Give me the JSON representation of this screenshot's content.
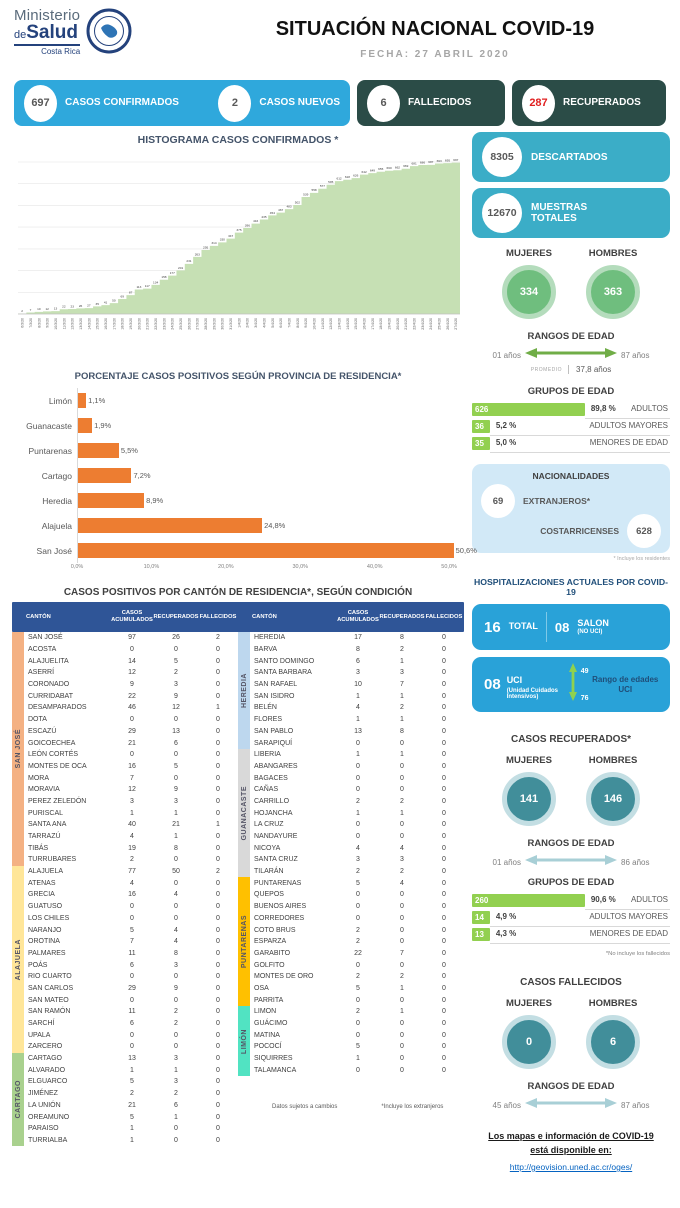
{
  "header": {
    "ministry_line1": "Ministerio",
    "ministry_de": "de",
    "ministry_line2": "Salud",
    "ministry_line3": "Costa Rica",
    "title": "SITUACIÓN NACIONAL COVID-19",
    "date_label": "FECHA: 27 ABRIL 2020"
  },
  "stats": {
    "confirmed": {
      "value": "697",
      "label": "CASOS CONFIRMADOS"
    },
    "new_cases": {
      "value": "2",
      "label": "CASOS NUEVOS"
    },
    "deaths": {
      "value": "6",
      "label": "FALLECIDOS"
    },
    "recovered": {
      "value": "287",
      "label": "RECUPERADOS"
    }
  },
  "colors": {
    "light_blue": "#2fa8dc",
    "dark_teal": "#2b4c47",
    "teal": "#3badc7",
    "hospital_blue": "#29a2d8",
    "green_bar": "#92d050",
    "orange_bar": "#ed7d31",
    "hist_green": "#c6e0b4",
    "table_header": "#2f5597",
    "recovered_number_red": "#e01f1f"
  },
  "chart_data": [
    {
      "type": "area",
      "title": "HISTOGRAMA CASOS CONFIRMADOS *",
      "x": [
        "6/3/20",
        "7/3/20",
        "8/3/20",
        "9/3/20",
        "10/3/20",
        "11/3/20",
        "12/3/20",
        "13/3/20",
        "14/3/20",
        "15/3/20",
        "16/3/20",
        "17/3/20",
        "18/3/20",
        "19/3/20",
        "20/3/20",
        "21/3/20",
        "22/3/20",
        "23/3/20",
        "24/3/20",
        "25/3/20",
        "26/3/20",
        "27/3/20",
        "28/3/20",
        "29/3/20",
        "30/3/20",
        "31/3/20",
        "1/4/20",
        "2/4/20",
        "3/4/20",
        "4/4/20",
        "5/4/20",
        "6/4/20",
        "7/4/20",
        "8/4/20",
        "9/4/20",
        "10/4/20",
        "11/4/20",
        "12/4/20",
        "13/4/20",
        "14/4/20",
        "15/4/20",
        "16/4/20",
        "17/4/20",
        "18/4/20",
        "19/4/20",
        "20/4/20",
        "21/4/20",
        "22/4/20",
        "23/4/20",
        "24/4/20",
        "25/4/20",
        "26/4/20",
        "27/4/20"
      ],
      "values": [
        2,
        7,
        10,
        12,
        13,
        22,
        23,
        26,
        27,
        35,
        41,
        50,
        69,
        87,
        113,
        117,
        134,
        158,
        177,
        201,
        231,
        263,
        295,
        314,
        330,
        347,
        375,
        396,
        416,
        435,
        454,
        467,
        483,
        502,
        539,
        558,
        577,
        595,
        612,
        618,
        626,
        642,
        649,
        655,
        660,
        662,
        669,
        681,
        686,
        687,
        693,
        695,
        697
      ],
      "ylim": [
        0,
        700
      ],
      "grid": "horizontal",
      "color": "#c6e0b4"
    },
    {
      "type": "bar",
      "orientation": "horizontal",
      "title": "PORCENTAJE CASOS POSITIVOS SEGÚN PROVINCIA DE RESIDENCIA*",
      "categories": [
        "Limón",
        "Guanacaste",
        "Puntarenas",
        "Cartago",
        "Heredia",
        "Alajuela",
        "San José"
      ],
      "values": [
        1.1,
        1.9,
        5.5,
        7.2,
        8.9,
        24.8,
        50.6
      ],
      "labels": [
        "1,1%",
        "1,9%",
        "5,5%",
        "7,2%",
        "8,9%",
        "24,8%",
        "50,6%"
      ],
      "xticks": [
        "0,0%",
        "10,0%",
        "20,0%",
        "30,0%",
        "40,0%",
        "50,0%"
      ],
      "xlim": [
        0,
        52
      ],
      "color": "#ed7d31"
    }
  ],
  "right_col": {
    "discarded": {
      "value": "8305",
      "label": "DESCARTADOS"
    },
    "samples": {
      "value": "12670",
      "label1": "MUESTRAS",
      "label2": "TOTALES"
    },
    "confirmed_gender": {
      "women_label": "MUJERES",
      "men_label": "HOMBRES",
      "women": "334",
      "men": "363"
    },
    "confirmed_age_range": {
      "title": "RANGOS DE EDAD",
      "min": "01 años",
      "max": "87 años",
      "avg_label": "PROMEDIO",
      "avg": "37,8 años"
    },
    "confirmed_age_groups": {
      "title": "GRUPOS DE EDAD",
      "rows": [
        {
          "value": "626",
          "pct": "89,8 %",
          "label": "ADULTOS"
        },
        {
          "value": "36",
          "pct": "5,2 %",
          "label": "ADULTOS MAYORES"
        },
        {
          "value": "35",
          "pct": "5,0 %",
          "label": "MENORES DE EDAD"
        }
      ]
    },
    "nationalities": {
      "title": "NACIONALIDADES",
      "foreign_value": "69",
      "foreign_label": "EXTRANJEROS*",
      "local_label": "COSTARRICENSES",
      "local_value": "628",
      "footnote": "* Incluye los residentes"
    },
    "hospitalizations": {
      "title": "HOSPITALIZACIONES ACTUALES POR COVID-19",
      "total_value": "16",
      "total_label": "TOTAL",
      "ward_value": "08",
      "ward_label": "SALON",
      "ward_sub": "(NO UCI)",
      "icu_value": "08",
      "icu_label": "UCI",
      "icu_sub": "(Unidad Cuidados Intensivos)",
      "icu_age_min": "49",
      "icu_age_max": "76",
      "icu_range_label": "Rango de edades UCI"
    },
    "recovered": {
      "title": "CASOS RECUPERADOS*",
      "women_label": "MUJERES",
      "men_label": "HOMBRES",
      "women": "141",
      "men": "146",
      "range_title": "RANGOS DE EDAD",
      "range_min": "01 años",
      "range_max": "86 años",
      "groups_title": "GRUPOS DE EDAD",
      "groups": [
        {
          "value": "260",
          "pct": "90,6 %",
          "label": "ADULTOS"
        },
        {
          "value": "14",
          "pct": "4,9 %",
          "label": "ADULTOS MAYORES"
        },
        {
          "value": "13",
          "pct": "4,3 %",
          "label": "MENORES DE EDAD"
        }
      ],
      "footnote": "*No incluye los fallecidos"
    },
    "deaths": {
      "title": "CASOS FALLECIDOS",
      "women_label": "MUJERES",
      "men_label": "HOMBRES",
      "women": "0",
      "men": "6",
      "range_title": "RANGOS DE EDAD",
      "range_min": "45 años",
      "range_max": "87 años"
    },
    "footer": {
      "line1": "Los mapas e información de COVID-19",
      "line2": "está disponible en:",
      "url": "http://geovision.uned.ac.cr/oges/"
    }
  },
  "cantons_table": {
    "title": "CASOS POSITIVOS POR CANTÓN DE RESIDENCIA*, SEGÚN CONDICIÓN",
    "headers": [
      "CANTÓN",
      "CASOS ACUMULADOS",
      "RECUPERADOS",
      "FALLECIDOS"
    ],
    "left_groups": [
      {
        "province": "SAN JOSÉ",
        "color": "#f4b183",
        "rows": [
          [
            "SAN JOSÉ",
            97,
            26,
            2
          ],
          [
            "ACOSTA",
            0,
            0,
            0
          ],
          [
            "ALAJUELITA",
            14,
            5,
            0
          ],
          [
            "ASERRÍ",
            12,
            2,
            0
          ],
          [
            "CORONADO",
            9,
            3,
            0
          ],
          [
            "CURRIDABAT",
            22,
            9,
            0
          ],
          [
            "DESAMPARADOS",
            46,
            12,
            1
          ],
          [
            "DOTA",
            0,
            0,
            0
          ],
          [
            "ESCAZÚ",
            29,
            13,
            0
          ],
          [
            "GOICOECHEA",
            21,
            6,
            0
          ],
          [
            "LEÓN CORTÉS",
            0,
            0,
            0
          ],
          [
            "MONTES DE OCA",
            16,
            5,
            0
          ],
          [
            "MORA",
            7,
            0,
            0
          ],
          [
            "MORAVIA",
            12,
            9,
            0
          ],
          [
            "PEREZ ZELEDÓN",
            3,
            3,
            0
          ],
          [
            "PURISCAL",
            1,
            1,
            0
          ],
          [
            "SANTA ANA",
            40,
            21,
            1
          ],
          [
            "TARRAZÚ",
            4,
            1,
            0
          ],
          [
            "TIBÁS",
            19,
            8,
            0
          ],
          [
            "TURRUBARES",
            2,
            0,
            0
          ]
        ]
      },
      {
        "province": "ALAJUELA",
        "color": "#ffe699",
        "rows": [
          [
            "ALAJUELA",
            77,
            50,
            2
          ],
          [
            "ATENAS",
            4,
            0,
            0
          ],
          [
            "GRECIA",
            16,
            4,
            0
          ],
          [
            "GUATUSO",
            0,
            0,
            0
          ],
          [
            "LOS CHILES",
            0,
            0,
            0
          ],
          [
            "NARANJO",
            5,
            4,
            0
          ],
          [
            "OROTINA",
            7,
            4,
            0
          ],
          [
            "PALMARES",
            11,
            8,
            0
          ],
          [
            "POÁS",
            6,
            3,
            0
          ],
          [
            "RIO CUARTO",
            0,
            0,
            0
          ],
          [
            "SAN CARLOS",
            29,
            9,
            0
          ],
          [
            "SAN MATEO",
            0,
            0,
            0
          ],
          [
            "SAN RAMÓN",
            11,
            2,
            0
          ],
          [
            "SARCHÍ",
            6,
            2,
            0
          ],
          [
            "UPALA",
            0,
            0,
            0
          ],
          [
            "ZARCERO",
            0,
            0,
            0
          ]
        ]
      },
      {
        "province": "CARTAGO",
        "color": "#a9d18e",
        "rows": [
          [
            "CARTAGO",
            13,
            3,
            0
          ],
          [
            "ALVARADO",
            1,
            1,
            0
          ],
          [
            "ELGUARCO",
            5,
            3,
            0
          ],
          [
            "JIMÉNEZ",
            2,
            2,
            0
          ],
          [
            "LA UNIÓN",
            21,
            6,
            0
          ],
          [
            "OREAMUNO",
            5,
            1,
            0
          ],
          [
            "PARAISO",
            1,
            0,
            0
          ],
          [
            "TURRIALBA",
            1,
            0,
            0
          ]
        ]
      }
    ],
    "right_groups": [
      {
        "province": "HEREDIA",
        "color": "#bdd7ee",
        "rows": [
          [
            "HEREDIA",
            17,
            8,
            0
          ],
          [
            "BARVA",
            8,
            2,
            0
          ],
          [
            "SANTO DOMINGO",
            6,
            1,
            0
          ],
          [
            "SANTA BARBARA",
            3,
            3,
            0
          ],
          [
            "SAN RAFAEL",
            10,
            7,
            0
          ],
          [
            "SAN ISIDRO",
            1,
            1,
            0
          ],
          [
            "BELÉN",
            4,
            2,
            0
          ],
          [
            "FLORES",
            1,
            1,
            0
          ],
          [
            "SAN PABLO",
            13,
            8,
            0
          ],
          [
            "SARAPIQUÍ",
            0,
            0,
            0
          ]
        ]
      },
      {
        "province": "GUANACASTE",
        "color": "#d9d9d9",
        "rows": [
          [
            "LIBERIA",
            1,
            1,
            0
          ],
          [
            "ABANGARES",
            0,
            0,
            0
          ],
          [
            "BAGACES",
            0,
            0,
            0
          ],
          [
            "CAÑAS",
            0,
            0,
            0
          ],
          [
            "CARRILLO",
            2,
            2,
            0
          ],
          [
            "HOJANCHA",
            1,
            1,
            0
          ],
          [
            "LA CRUZ",
            0,
            0,
            0
          ],
          [
            "NANDAYURE",
            0,
            0,
            0
          ],
          [
            "NICOYA",
            4,
            4,
            0
          ],
          [
            "SANTA CRUZ",
            3,
            3,
            0
          ],
          [
            "TILARÁN",
            2,
            2,
            0
          ]
        ]
      },
      {
        "province": "PUNTARENAS",
        "color": "#ffc000",
        "rows": [
          [
            "PUNTARENAS",
            5,
            4,
            0
          ],
          [
            "QUEPOS",
            0,
            0,
            0
          ],
          [
            "BUENOS AIRES",
            0,
            0,
            0
          ],
          [
            "CORREDORES",
            0,
            0,
            0
          ],
          [
            "COTO BRUS",
            2,
            0,
            0
          ],
          [
            "ESPARZA",
            2,
            0,
            0
          ],
          [
            "GARABITO",
            22,
            7,
            0
          ],
          [
            "GOLFITO",
            0,
            0,
            0
          ],
          [
            "MONTES DE ORO",
            2,
            2,
            0
          ],
          [
            "OSA",
            5,
            1,
            0
          ],
          [
            "PARRITA",
            0,
            0,
            0
          ]
        ]
      },
      {
        "province": "LIMÓN",
        "color": "#51e3c2",
        "rows": [
          [
            "LIMON",
            2,
            1,
            0
          ],
          [
            "GUÁCIMO",
            0,
            0,
            0
          ],
          [
            "MATINA",
            0,
            0,
            0
          ],
          [
            "POCOCÍ",
            5,
            0,
            0
          ],
          [
            "SIQUIRRES",
            1,
            0,
            0
          ],
          [
            "TALAMANCA",
            0,
            0,
            0
          ]
        ]
      }
    ],
    "footnotes": [
      "Datos sujetos a cambios",
      "*Incluye los extranjeros"
    ]
  }
}
